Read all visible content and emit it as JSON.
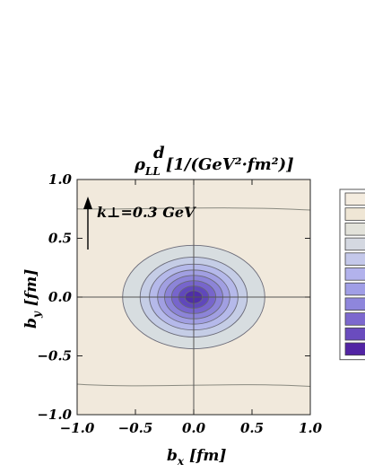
{
  "chart_data": {
    "type": "heatmap",
    "subtype": "contour",
    "title": {
      "symbol": "ρ",
      "superscript": "d",
      "subscript": "LL",
      "units": "[1/(GeV²·fm²)]"
    },
    "xlabel": {
      "symbol": "b",
      "subscript": "x",
      "units": "[fm]"
    },
    "ylabel": {
      "symbol": "b",
      "subscript": "y",
      "units": "[fm]"
    },
    "xlim": [
      -1.0,
      1.0
    ],
    "ylim": [
      -1.0,
      1.0
    ],
    "x_ticks": [
      "−1.0",
      "−0.5",
      "0.0",
      "0.5",
      "1.0"
    ],
    "y_ticks": [
      "−1.0",
      "−0.5",
      "0.0",
      "0.5",
      "1.0"
    ],
    "annotation": {
      "text": "k⊥=0.3 GeV",
      "arrow_direction": "up"
    },
    "center": [
      0.0,
      0.0
    ],
    "contour_levels": [
      {
        "rx": 0.61,
        "ry": 0.44,
        "color": "#d7dde0"
      },
      {
        "rx": 0.46,
        "ry": 0.34,
        "color": "#c5cde6"
      },
      {
        "rx": 0.38,
        "ry": 0.28,
        "color": "#b5b9ea"
      },
      {
        "rx": 0.31,
        "ry": 0.23,
        "color": "#a19fe2"
      },
      {
        "rx": 0.25,
        "ry": 0.185,
        "color": "#8c84d8"
      },
      {
        "rx": 0.19,
        "ry": 0.14,
        "color": "#7765cc"
      },
      {
        "rx": 0.13,
        "ry": 0.095,
        "color": "#6048bb"
      },
      {
        "rx": 0.075,
        "ry": 0.055,
        "color": "#4f2ea8"
      }
    ],
    "background_color": "#f1e9dc",
    "legend_swatches": [
      "#f4ecdf",
      "#efe6d5",
      "#e2e2da",
      "#d4d8e1",
      "#c4c8ea",
      "#b2b2ec",
      "#a09ee6",
      "#8e86dc",
      "#7c68ce",
      "#6a4cbe",
      "#5224a4"
    ]
  }
}
